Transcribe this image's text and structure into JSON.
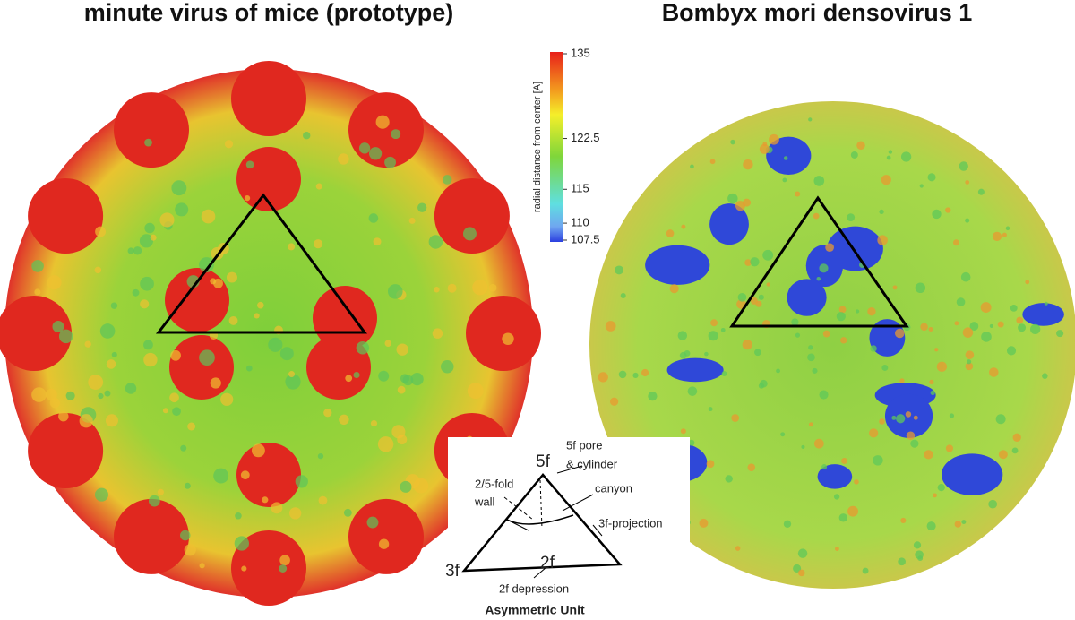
{
  "titles": {
    "left": "minute virus of mice (prototype)",
    "right": "Bombyx mori densovirus 1"
  },
  "colorbar": {
    "label": "radial distance from center [A]",
    "lim": [
      107.5,
      135
    ],
    "ticks": [
      107.5,
      110,
      115,
      122.5,
      135
    ]
  },
  "asymmetric_unit": {
    "title": "Asymmetric Unit",
    "vertex_5f": "5f",
    "vertex_3f": "3f",
    "vertex_2f": "2f",
    "pore": [
      "5f pore",
      "& cylinder"
    ],
    "wall": [
      "2/5-fold",
      "wall"
    ],
    "canyon": "canyon",
    "projection": "3f-projection",
    "depression": "2f depression"
  }
}
